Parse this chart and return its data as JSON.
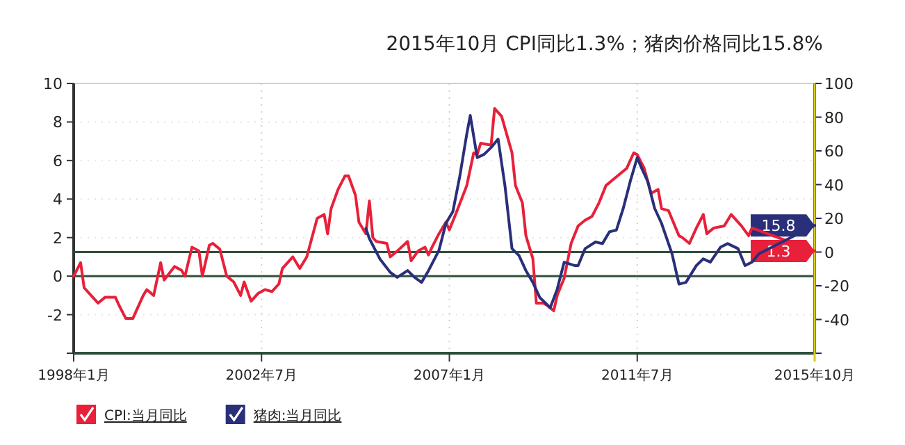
{
  "chart_data": {
    "type": "line",
    "title": "2015年10月 CPI同比1.3%；猪肉价格同比15.8%",
    "xlim": [
      "1998-01",
      "2015-10"
    ],
    "xticks": [
      {
        "value": "1998-01",
        "label": "1998年1月"
      },
      {
        "value": "2002-07",
        "label": "2002年7月"
      },
      {
        "value": "2007-01",
        "label": "2007年1月"
      },
      {
        "value": "2011-07",
        "label": "2011年7月"
      },
      {
        "value": "2015-10",
        "label": "2015年10月"
      }
    ],
    "ylim": [
      -4,
      10
    ],
    "yticks": [
      {
        "value": -4,
        "label": null
      },
      -2,
      0,
      2,
      4,
      6,
      8,
      10
    ],
    "y2lim": [
      -60,
      100
    ],
    "y2ticks": [
      {
        "value": -60,
        "label": null
      },
      -40,
      -20,
      0,
      20,
      40,
      60,
      80,
      100
    ],
    "grid": true,
    "legend": "bottom left",
    "ref_lines": [
      {
        "axis": "y",
        "value": 0,
        "color": "#2f4f3a"
      },
      {
        "axis": "y2",
        "value": 0,
        "color": "#2f4f3a"
      },
      {
        "axis": "x",
        "value": "2015-10",
        "color": "#d8cc20"
      }
    ],
    "series": [
      {
        "name": "CPI:当月同比",
        "color": "#e8203a",
        "x": [
          "1998-01",
          "1998-03",
          "1998-04",
          "1998-07",
          "1998-08",
          "1998-10",
          "1999-01",
          "1999-02",
          "1999-04",
          "1999-06",
          "1999-08",
          "1999-09",
          "1999-10",
          "1999-12",
          "2000-02",
          "2000-03",
          "2000-06",
          "2000-08",
          "2000-09",
          "2000-11",
          "2001-01",
          "2001-02",
          "2001-04",
          "2001-05",
          "2001-07",
          "2001-09",
          "2001-11",
          "2002-01",
          "2002-02",
          "2002-04",
          "2002-06",
          "2002-08",
          "2002-10",
          "2002-12",
          "2003-01",
          "2003-04",
          "2003-06",
          "2003-08",
          "2003-11",
          "2004-01",
          "2004-02",
          "2004-03",
          "2004-05",
          "2004-07",
          "2004-08",
          "2004-10",
          "2004-11",
          "2005-01",
          "2005-02",
          "2005-03",
          "2005-04",
          "2005-07",
          "2005-08",
          "2005-10",
          "2006-01",
          "2006-02",
          "2006-04",
          "2006-06",
          "2006-07",
          "2006-08",
          "2006-10",
          "2006-12",
          "2007-01",
          "2007-03",
          "2007-06",
          "2007-08",
          "2007-09",
          "2007-10",
          "2008-01",
          "2008-02",
          "2008-03",
          "2008-04",
          "2008-07",
          "2008-08",
          "2008-10",
          "2008-11",
          "2009-01",
          "2009-02",
          "2009-04",
          "2009-05",
          "2009-07",
          "2009-08",
          "2009-10",
          "2009-12",
          "2010-02",
          "2010-04",
          "2010-06",
          "2010-08",
          "2010-10",
          "2010-12",
          "2011-02",
          "2011-04",
          "2011-06",
          "2011-07",
          "2011-09",
          "2011-11",
          "2012-01",
          "2012-02",
          "2012-04",
          "2012-07",
          "2012-08",
          "2012-10",
          "2012-12",
          "2013-02",
          "2013-03",
          "2013-05",
          "2013-08",
          "2013-10",
          "2014-01",
          "2014-03",
          "2014-04",
          "2015-10"
        ],
        "values": [
          0,
          0.7,
          -0.6,
          -1.2,
          -1.4,
          -1.1,
          -1.1,
          -1.5,
          -2.2,
          -2.2,
          -1.4,
          -1.0,
          -0.7,
          -1.0,
          0.7,
          -0.2,
          0.5,
          0.3,
          0,
          1.5,
          1.3,
          0,
          1.6,
          1.7,
          1.4,
          0,
          -0.3,
          -1.0,
          -0.3,
          -1.3,
          -0.9,
          -0.7,
          -0.8,
          -0.4,
          0.4,
          1.0,
          0.4,
          1.0,
          3.0,
          3.2,
          2.2,
          3.5,
          4.5,
          5.2,
          5.2,
          4.2,
          2.8,
          2.2,
          3.9,
          2.0,
          1.8,
          1.7,
          1.0,
          1.3,
          1.8,
          0.8,
          1.3,
          1.5,
          1.1,
          1.5,
          2.2,
          2.8,
          2.4,
          3.3,
          4.7,
          6.4,
          6.3,
          6.9,
          6.8,
          8.7,
          8.5,
          8.3,
          6.4,
          4.7,
          3.8,
          2.1,
          0.9,
          -1.4,
          -1.4,
          -1.5,
          -1.8,
          -1.0,
          -0.1,
          1.7,
          2.6,
          2.9,
          3.1,
          3.8,
          4.7,
          5.0,
          5.3,
          5.6,
          6.4,
          6.3,
          5.6,
          4.3,
          4.5,
          3.5,
          3.4,
          2.1,
          2.0,
          1.7,
          2.5,
          3.2,
          2.2,
          2.5,
          2.6,
          3.2,
          2.6,
          2.1,
          2.5,
          1.3
        ]
      },
      {
        "name": "猪肉:当月同比",
        "color": "#2a2f7a",
        "axis": "y2",
        "x": [
          "2005-01",
          "2005-02",
          "2005-05",
          "2005-08",
          "2005-10",
          "2006-01",
          "2006-03",
          "2006-05",
          "2006-07",
          "2006-10",
          "2006-12",
          "2007-02",
          "2007-04",
          "2007-06",
          "2007-07",
          "2007-09",
          "2007-11",
          "2008-01",
          "2008-03",
          "2008-05",
          "2008-07",
          "2008-09",
          "2008-11",
          "2009-01",
          "2009-03",
          "2009-06",
          "2009-08",
          "2009-10",
          "2010-01",
          "2010-02",
          "2010-04",
          "2010-07",
          "2010-09",
          "2010-11",
          "2011-01",
          "2011-03",
          "2011-05",
          "2011-07",
          "2011-08",
          "2011-10",
          "2011-12",
          "2012-02",
          "2012-05",
          "2012-07",
          "2012-09",
          "2012-12",
          "2013-02",
          "2013-04",
          "2013-07",
          "2013-09",
          "2013-12",
          "2014-02",
          "2014-04",
          "2014-06",
          "2015-10"
        ],
        "values": [
          14,
          8,
          -4,
          -12,
          -15,
          -11,
          -15,
          -18,
          -11,
          1,
          17,
          24,
          45,
          70,
          81,
          56,
          58,
          62,
          67,
          39,
          2,
          -2,
          -11,
          -18,
          -27,
          -33,
          -22,
          -6,
          -8,
          -8,
          2,
          6,
          5,
          12,
          13,
          26,
          42,
          56,
          51,
          42,
          26,
          17,
          -1,
          -19,
          -18,
          -8,
          -4,
          -6,
          3,
          5,
          2,
          -8,
          -6,
          -1,
          15.8
        ]
      }
    ],
    "annotations": [
      "1.3",
      "15.8"
    ]
  }
}
